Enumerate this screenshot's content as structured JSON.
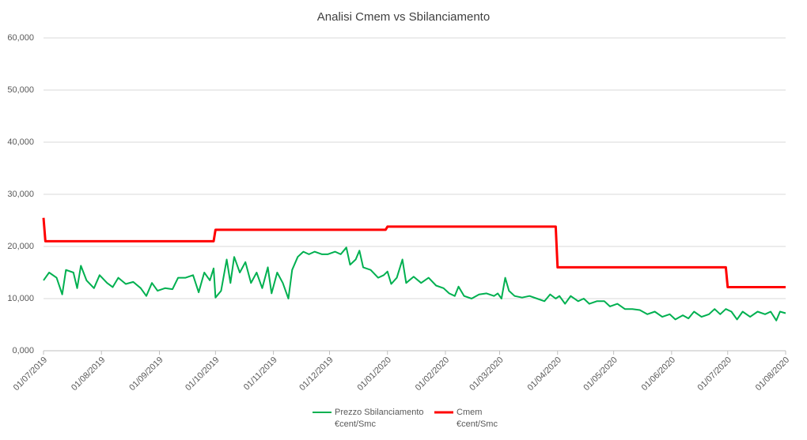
{
  "chart_data": {
    "type": "line",
    "title": "Analisi Cmem vs Sbilanciamento",
    "xlim": [
      "01/07/2019",
      "01/08/2020"
    ],
    "xticks": [
      "01/07/2019",
      "01/08/2019",
      "01/09/2019",
      "01/10/2019",
      "01/11/2019",
      "01/12/2019",
      "01/01/2020",
      "01/02/2020",
      "01/03/2020",
      "01/04/2020",
      "01/05/2020",
      "01/06/2020",
      "01/07/2020",
      "01/08/2020"
    ],
    "ylim": [
      0,
      60
    ],
    "yticks": [
      {
        "value": 0,
        "label": "0,000"
      },
      {
        "value": 10,
        "label": "10,000"
      },
      {
        "value": 20,
        "label": "20,000"
      },
      {
        "value": 30,
        "label": "30,000"
      },
      {
        "value": 40,
        "label": "40,000"
      },
      {
        "value": 50,
        "label": "50,000"
      },
      {
        "value": 60,
        "label": "60,000"
      }
    ],
    "grid": true,
    "legend": "bottom",
    "series": [
      {
        "name": "Prezzo Sbilanciamento\n€cent/Smc",
        "color": "#00b050",
        "x": [
          "01/07/2019",
          "04/07/2019",
          "08/07/2019",
          "11/07/2019",
          "13/07/2019",
          "17/07/2019",
          "19/07/2019",
          "21/07/2019",
          "24/07/2019",
          "28/07/2019",
          "31/07/2019",
          "04/08/2019",
          "07/08/2019",
          "10/08/2019",
          "14/08/2019",
          "18/08/2019",
          "22/08/2019",
          "25/08/2019",
          "28/08/2019",
          "31/08/2019",
          "04/09/2019",
          "08/09/2019",
          "11/09/2019",
          "15/09/2019",
          "19/09/2019",
          "22/09/2019",
          "25/09/2019",
          "28/09/2019",
          "30/09/2019",
          "01/10/2019",
          "04/10/2019",
          "07/10/2019",
          "09/10/2019",
          "11/10/2019",
          "14/10/2019",
          "17/10/2019",
          "20/10/2019",
          "23/10/2019",
          "26/10/2019",
          "29/10/2019",
          "31/10/2019",
          "03/11/2019",
          "06/11/2019",
          "09/11/2019",
          "11/11/2019",
          "14/11/2019",
          "17/11/2019",
          "20/11/2019",
          "23/11/2019",
          "27/11/2019",
          "30/11/2019",
          "04/12/2019",
          "07/12/2019",
          "10/12/2019",
          "12/12/2019",
          "15/12/2019",
          "17/12/2019",
          "19/12/2019",
          "23/12/2019",
          "27/12/2019",
          "30/12/2019",
          "01/01/2020",
          "03/01/2020",
          "06/01/2020",
          "09/01/2020",
          "11/01/2020",
          "15/01/2020",
          "19/01/2020",
          "23/01/2020",
          "27/01/2020",
          "31/01/2020",
          "03/02/2020",
          "06/02/2020",
          "08/02/2020",
          "11/02/2020",
          "15/02/2020",
          "19/02/2020",
          "23/02/2020",
          "27/02/2020",
          "29/02/2020",
          "02/03/2020",
          "04/03/2020",
          "06/03/2020",
          "09/03/2020",
          "13/03/2020",
          "17/03/2020",
          "21/03/2020",
          "25/03/2020",
          "28/03/2020",
          "31/03/2020",
          "02/04/2020",
          "05/04/2020",
          "08/04/2020",
          "12/04/2020",
          "15/04/2020",
          "18/04/2020",
          "22/04/2020",
          "26/04/2020",
          "29/04/2020",
          "03/05/2020",
          "07/05/2020",
          "11/05/2020",
          "15/05/2020",
          "19/05/2020",
          "23/05/2020",
          "27/05/2020",
          "31/05/2020",
          "03/06/2020",
          "07/06/2020",
          "10/06/2020",
          "13/06/2020",
          "17/06/2020",
          "21/06/2020",
          "24/06/2020",
          "27/06/2020",
          "30/06/2020",
          "03/07/2020",
          "06/07/2020",
          "09/07/2020",
          "13/07/2020",
          "17/07/2020",
          "21/07/2020",
          "24/07/2020",
          "27/07/2020",
          "29/07/2020",
          "01/08/2020"
        ],
        "values": [
          13.5,
          15,
          14,
          10.8,
          15.5,
          15,
          12,
          16.3,
          13.5,
          12,
          14.5,
          13,
          12.2,
          14,
          12.8,
          13.2,
          12,
          10.5,
          13,
          11.5,
          12,
          11.8,
          14,
          14,
          14.5,
          11.2,
          15,
          13.5,
          15.8,
          10.2,
          11.5,
          17.5,
          13,
          18,
          15,
          17,
          13,
          15,
          12,
          16,
          11,
          15,
          13,
          10,
          15.5,
          18,
          19,
          18.5,
          19,
          18.5,
          18.5,
          19,
          18.5,
          19.8,
          16.5,
          17.5,
          19.2,
          16,
          15.5,
          14,
          14.5,
          15.2,
          12.8,
          14,
          17.5,
          13,
          14.2,
          13,
          14,
          12.5,
          12,
          11,
          10.5,
          12.3,
          10.5,
          10,
          10.8,
          11,
          10.5,
          11,
          10,
          14,
          11.5,
          10.5,
          10.2,
          10.5,
          10,
          9.5,
          10.8,
          10,
          10.5,
          9,
          10.5,
          9.5,
          10,
          9,
          9.5,
          9.5,
          8.5,
          9,
          8,
          8,
          7.8,
          7,
          7.5,
          6.5,
          7,
          6,
          6.8,
          6.2,
          7.5,
          6.5,
          7,
          8,
          7,
          8,
          7.5,
          6,
          7.5,
          6.5,
          7.5,
          7,
          7.5,
          5.8,
          7.5,
          7.2
        ]
      },
      {
        "name": "Cmem\n€cent/Smc",
        "color": "#ff0000",
        "x": [
          "01/07/2019",
          "02/07/2019",
          "30/09/2019",
          "01/10/2019",
          "31/12/2019",
          "01/01/2020",
          "31/03/2020",
          "01/04/2020",
          "30/06/2020",
          "01/07/2020",
          "01/08/2020"
        ],
        "values": [
          25.5,
          21,
          21,
          23.2,
          23.2,
          23.8,
          23.8,
          16,
          16,
          12.2,
          12.2
        ]
      }
    ]
  }
}
